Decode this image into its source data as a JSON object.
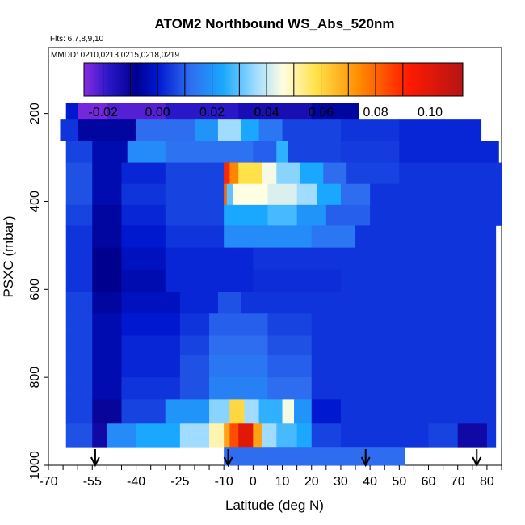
{
  "colors": {
    "ramp": [
      "#8a2be2",
      "#2a17c8",
      "#00008f",
      "#0018d0",
      "#2e6df0",
      "#1aa8ff",
      "#9fdcff",
      "#fffde2",
      "#ffe24a",
      "#ff8c00",
      "#ff1a00",
      "#b51414"
    ],
    "ramp_stops": [
      -0.027,
      -0.018,
      -0.008,
      0.0,
      0.012,
      0.024,
      0.036,
      0.046,
      0.058,
      0.074,
      0.092,
      0.112
    ]
  },
  "chart_data": {
    "type": "heatmap",
    "title": "ATOM2 Northbound WS_Abs_520nm",
    "flights_note": "Flts: 6,7,8,9,10",
    "dates_note": "MMDD: 0210,0213,0215,0218,0219",
    "xlabel": "Latitude (deg N)",
    "ylabel": "PSXC (mbar)",
    "xlim": [
      -70,
      85
    ],
    "ylim": [
      1000,
      50
    ],
    "x_tick_labels": [
      "-70",
      "-55",
      "-40",
      "-25",
      "-10",
      "0",
      "10",
      "20",
      "30",
      "40",
      "50",
      "60",
      "70",
      "80"
    ],
    "x_tick_values": [
      -70,
      -55,
      -40,
      -25,
      -10,
      0,
      10,
      20,
      30,
      40,
      50,
      60,
      70,
      80
    ],
    "y_tick_labels": [
      "200",
      "400",
      "600",
      "800",
      "1000"
    ],
    "y_tick_values": [
      200,
      400,
      600,
      800,
      1000
    ],
    "colorbar": {
      "min": -0.027,
      "max": 0.112,
      "tick_labels": [
        "-0.02",
        "0.00",
        "0.02",
        "0.04",
        "0.06",
        "0.08",
        "0.10"
      ],
      "tick_values": [
        -0.02,
        0.0,
        0.02,
        0.04,
        0.06,
        0.08,
        0.1
      ],
      "boundaries": [
        -0.02,
        -0.01,
        0.0,
        0.01,
        0.02,
        0.03,
        0.04,
        0.05,
        0.06,
        0.07,
        0.08,
        0.09,
        0.1
      ]
    },
    "arrow_latitudes": [
      -54,
      -8.5,
      38.5,
      76.5
    ],
    "bands": [
      {
        "p_top": 175,
        "p_bot": 212,
        "lat_min": -64,
        "lat_max": 36,
        "segments": [
          [
            -64,
            -60,
            0.0
          ],
          [
            -60,
            -50,
            -0.025
          ],
          [
            -50,
            -30,
            -0.022
          ],
          [
            -30,
            -5,
            -0.018
          ],
          [
            -5,
            20,
            -0.014
          ],
          [
            20,
            36,
            -0.006
          ]
        ]
      },
      {
        "p_top": 212,
        "p_bot": 262,
        "lat_min": -66,
        "lat_max": 78,
        "segments": [
          [
            -66,
            -60,
            0.004
          ],
          [
            -60,
            -40,
            -0.006
          ],
          [
            -40,
            -20,
            0.012
          ],
          [
            -20,
            -12,
            0.02
          ],
          [
            -12,
            -4,
            0.036
          ],
          [
            -4,
            2,
            0.024
          ],
          [
            2,
            10,
            0.014
          ],
          [
            10,
            30,
            0.006
          ],
          [
            30,
            50,
            0.004
          ],
          [
            50,
            78,
            0.002
          ]
        ]
      },
      {
        "p_top": 262,
        "p_bot": 312,
        "lat_min": -64,
        "lat_max": 84,
        "segments": [
          [
            -64,
            -55,
            0.006
          ],
          [
            -55,
            -43,
            -0.004
          ],
          [
            -43,
            -30,
            0.018
          ],
          [
            -30,
            0,
            0.013
          ],
          [
            0,
            8,
            0.01
          ],
          [
            8,
            12,
            0.026
          ],
          [
            12,
            30,
            0.006
          ],
          [
            30,
            50,
            0.005
          ],
          [
            50,
            84,
            0.002
          ]
        ]
      },
      {
        "p_top": 312,
        "p_bot": 360,
        "lat_min": -64,
        "lat_max": 85,
        "segments": [
          [
            -64,
            -55,
            0.008
          ],
          [
            -55,
            -45,
            -0.004
          ],
          [
            -45,
            -30,
            0.002
          ],
          [
            -30,
            -10,
            0.006
          ],
          [
            -10,
            -8,
            0.09
          ],
          [
            -8,
            -5,
            0.075
          ],
          [
            -5,
            3,
            0.058
          ],
          [
            3,
            8,
            0.045
          ],
          [
            8,
            16,
            0.034
          ],
          [
            16,
            24,
            0.024
          ],
          [
            24,
            32,
            0.012
          ],
          [
            32,
            50,
            0.006
          ],
          [
            50,
            85,
            0.004
          ]
        ]
      },
      {
        "p_top": 360,
        "p_bot": 408,
        "lat_min": -64,
        "lat_max": 85,
        "segments": [
          [
            -64,
            -55,
            0.008
          ],
          [
            -55,
            -45,
            -0.004
          ],
          [
            -45,
            -30,
            0.004
          ],
          [
            -30,
            -10,
            0.006
          ],
          [
            -10,
            -9,
            0.08
          ],
          [
            -9,
            -7,
            0.03
          ],
          [
            -7,
            5,
            0.046
          ],
          [
            5,
            15,
            0.042
          ],
          [
            15,
            22,
            0.036
          ],
          [
            22,
            30,
            0.024
          ],
          [
            30,
            40,
            0.012
          ],
          [
            40,
            85,
            0.004
          ]
        ]
      },
      {
        "p_top": 408,
        "p_bot": 455,
        "lat_min": -64,
        "lat_max": 85,
        "segments": [
          [
            -64,
            -55,
            0.006
          ],
          [
            -55,
            -45,
            -0.006
          ],
          [
            -45,
            -30,
            0.002
          ],
          [
            -30,
            -10,
            0.006
          ],
          [
            -10,
            5,
            0.024
          ],
          [
            5,
            15,
            0.028
          ],
          [
            15,
            25,
            0.02
          ],
          [
            25,
            40,
            0.01
          ],
          [
            40,
            85,
            0.004
          ]
        ]
      },
      {
        "p_top": 455,
        "p_bot": 505,
        "lat_min": -64,
        "lat_max": 83,
        "segments": [
          [
            -64,
            -55,
            0.004
          ],
          [
            -55,
            -45,
            -0.006
          ],
          [
            -45,
            -30,
            0.0
          ],
          [
            -30,
            -10,
            0.004
          ],
          [
            -10,
            20,
            0.018
          ],
          [
            20,
            35,
            0.014
          ],
          [
            35,
            83,
            0.004
          ]
        ]
      },
      {
        "p_top": 505,
        "p_bot": 555,
        "lat_min": -64,
        "lat_max": 83,
        "segments": [
          [
            -64,
            -55,
            0.004
          ],
          [
            -55,
            -45,
            -0.008
          ],
          [
            -45,
            -30,
            -0.002
          ],
          [
            -30,
            0,
            0.002
          ],
          [
            0,
            30,
            0.004
          ],
          [
            30,
            83,
            0.004
          ]
        ]
      },
      {
        "p_top": 555,
        "p_bot": 605,
        "lat_min": -64,
        "lat_max": 83,
        "segments": [
          [
            -64,
            -55,
            0.004
          ],
          [
            -55,
            -45,
            -0.008
          ],
          [
            -45,
            -30,
            -0.004
          ],
          [
            -30,
            0,
            0.002
          ],
          [
            0,
            30,
            0.003
          ],
          [
            30,
            83,
            0.004
          ]
        ]
      },
      {
        "p_top": 605,
        "p_bot": 655,
        "lat_min": -64,
        "lat_max": 83,
        "segments": [
          [
            -64,
            -55,
            0.006
          ],
          [
            -55,
            -45,
            -0.006
          ],
          [
            -45,
            -25,
            -0.002
          ],
          [
            -25,
            -12,
            0.002
          ],
          [
            -12,
            -4,
            0.008
          ],
          [
            -4,
            20,
            0.004
          ],
          [
            20,
            83,
            0.004
          ]
        ]
      },
      {
        "p_top": 655,
        "p_bot": 705,
        "lat_min": -64,
        "lat_max": 83,
        "segments": [
          [
            -64,
            -55,
            0.006
          ],
          [
            -55,
            -45,
            -0.004
          ],
          [
            -45,
            -25,
            0.0
          ],
          [
            -25,
            -15,
            0.004
          ],
          [
            -15,
            5,
            0.01
          ],
          [
            5,
            20,
            0.006
          ],
          [
            20,
            83,
            0.004
          ]
        ]
      },
      {
        "p_top": 705,
        "p_bot": 750,
        "lat_min": -64,
        "lat_max": 83,
        "segments": [
          [
            -64,
            -55,
            0.006
          ],
          [
            -55,
            -45,
            -0.004
          ],
          [
            -45,
            -25,
            0.002
          ],
          [
            -25,
            -15,
            0.006
          ],
          [
            -15,
            5,
            0.012
          ],
          [
            5,
            20,
            0.008
          ],
          [
            20,
            83,
            0.004
          ]
        ]
      },
      {
        "p_top": 750,
        "p_bot": 800,
        "lat_min": -64,
        "lat_max": 83,
        "segments": [
          [
            -64,
            -55,
            0.006
          ],
          [
            -55,
            -45,
            -0.004
          ],
          [
            -45,
            -25,
            0.002
          ],
          [
            -25,
            -15,
            0.008
          ],
          [
            -15,
            5,
            0.014
          ],
          [
            5,
            20,
            0.01
          ],
          [
            20,
            83,
            0.004
          ]
        ]
      },
      {
        "p_top": 800,
        "p_bot": 850,
        "lat_min": -64,
        "lat_max": 83,
        "segments": [
          [
            -64,
            -55,
            0.006
          ],
          [
            -55,
            -45,
            -0.004
          ],
          [
            -45,
            -25,
            0.004
          ],
          [
            -25,
            -15,
            0.008
          ],
          [
            -15,
            5,
            0.016
          ],
          [
            5,
            20,
            0.012
          ],
          [
            20,
            83,
            0.004
          ]
        ]
      },
      {
        "p_top": 850,
        "p_bot": 905,
        "lat_min": -64,
        "lat_max": 83,
        "segments": [
          [
            -64,
            -55,
            0.006
          ],
          [
            -55,
            -45,
            -0.01
          ],
          [
            -45,
            -30,
            0.006
          ],
          [
            -30,
            -15,
            0.02
          ],
          [
            -15,
            -8,
            0.034
          ],
          [
            -8,
            -3,
            0.06
          ],
          [
            -3,
            2,
            0.036
          ],
          [
            2,
            10,
            0.026
          ],
          [
            10,
            14,
            0.045
          ],
          [
            14,
            20,
            0.02
          ],
          [
            20,
            30,
            0.0
          ],
          [
            30,
            83,
            0.004
          ]
        ]
      },
      {
        "p_top": 905,
        "p_bot": 960,
        "lat_min": -64,
        "lat_max": 83,
        "segments": [
          [
            -64,
            -55,
            0.008
          ],
          [
            -55,
            -50,
            -0.012
          ],
          [
            -50,
            -40,
            0.018
          ],
          [
            -40,
            -25,
            0.024
          ],
          [
            -25,
            -15,
            0.036
          ],
          [
            -15,
            -10,
            0.05
          ],
          [
            -10,
            -8,
            0.07
          ],
          [
            -8,
            -5,
            0.084
          ],
          [
            -5,
            0,
            0.1
          ],
          [
            0,
            3,
            0.07
          ],
          [
            3,
            8,
            0.036
          ],
          [
            8,
            15,
            0.028
          ],
          [
            15,
            20,
            0.024
          ],
          [
            20,
            30,
            0.006
          ],
          [
            30,
            60,
            0.004
          ],
          [
            60,
            70,
            0.006
          ],
          [
            70,
            80,
            -0.012
          ],
          [
            80,
            83,
            0.004
          ]
        ]
      },
      {
        "p_top": 960,
        "p_bot": 1000,
        "lat_min": -10,
        "lat_max": 52,
        "segments": [
          [
            -10,
            52,
            0.012
          ]
        ]
      }
    ]
  }
}
